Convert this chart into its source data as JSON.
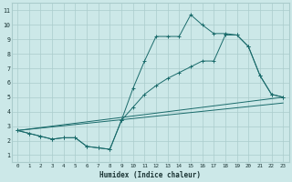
{
  "xlabel": "Humidex (Indice chaleur)",
  "background_color": "#cce8e8",
  "grid_color": "#aacccc",
  "line_color": "#1a6b6b",
  "xticks": [
    0,
    1,
    2,
    3,
    4,
    5,
    6,
    7,
    8,
    9,
    10,
    11,
    12,
    13,
    14,
    15,
    16,
    17,
    18,
    19,
    20,
    21,
    22,
    23
  ],
  "yticks": [
    1,
    2,
    3,
    4,
    5,
    6,
    7,
    8,
    9,
    10,
    11
  ],
  "xlim": [
    -0.5,
    23.5
  ],
  "ylim": [
    0.5,
    11.5
  ],
  "line1_x": [
    0,
    1,
    2,
    3,
    4,
    5,
    6,
    7,
    8,
    9,
    10,
    11,
    12,
    13,
    14,
    15,
    16,
    17,
    18,
    19,
    20,
    21,
    22,
    23
  ],
  "line1_y": [
    2.7,
    2.5,
    2.3,
    2.1,
    2.2,
    2.2,
    1.6,
    1.5,
    1.4,
    3.4,
    5.6,
    7.5,
    9.2,
    9.2,
    9.2,
    10.7,
    10.0,
    9.4,
    9.4,
    9.3,
    8.5,
    6.5,
    5.2,
    5.0
  ],
  "line2_x": [
    0,
    1,
    2,
    3,
    4,
    5,
    6,
    7,
    8,
    9,
    10,
    11,
    12,
    13,
    14,
    15,
    16,
    17,
    18,
    19,
    20,
    21,
    22,
    23
  ],
  "line2_y": [
    2.7,
    2.5,
    2.3,
    2.1,
    2.2,
    2.2,
    1.6,
    1.5,
    1.4,
    3.4,
    4.3,
    5.2,
    5.8,
    6.3,
    6.7,
    7.1,
    7.5,
    7.5,
    9.3,
    9.3,
    8.5,
    6.5,
    5.2,
    5.0
  ],
  "line3_x": [
    0,
    23
  ],
  "line3_y": [
    2.7,
    5.0
  ],
  "line4_x": [
    0,
    23
  ],
  "line4_y": [
    2.7,
    4.6
  ]
}
